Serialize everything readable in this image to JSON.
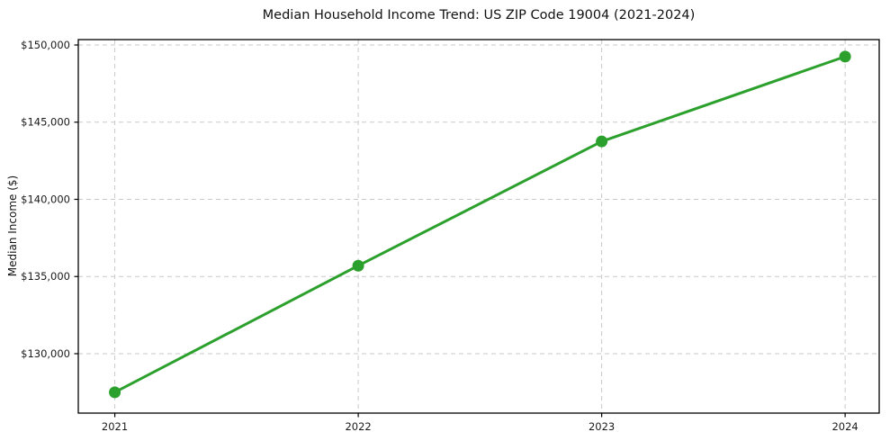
{
  "chart_data": {
    "type": "line",
    "title": "Median Household Income Trend: US ZIP Code 19004 (2021-2024)",
    "xlabel": "",
    "ylabel": "Median Income ($)",
    "x": [
      2021,
      2022,
      2023,
      2024
    ],
    "series": [
      {
        "name": "Median Household Income",
        "values": [
          127500,
          135700,
          143750,
          149250
        ]
      }
    ],
    "xtick_labels": [
      "2021",
      "2022",
      "2023",
      "2024"
    ],
    "ytick_values": [
      130000,
      135000,
      140000,
      145000,
      150000
    ],
    "ytick_labels": [
      "$130,000",
      "$135,000",
      "$140,000",
      "$145,000",
      "$150,000"
    ],
    "xlim": [
      2020.85,
      2024.14
    ],
    "ylim": [
      126150,
      150350
    ],
    "grid": true,
    "grid_style": "dashed",
    "legend_position": "none",
    "line_color": "#2ca02c",
    "marker_color": "#2ca02c",
    "grid_color": "#c9c9c9",
    "axis_color": "#000000",
    "tick_label_color": "#1a1a1a",
    "background_color": "#ffffff"
  }
}
